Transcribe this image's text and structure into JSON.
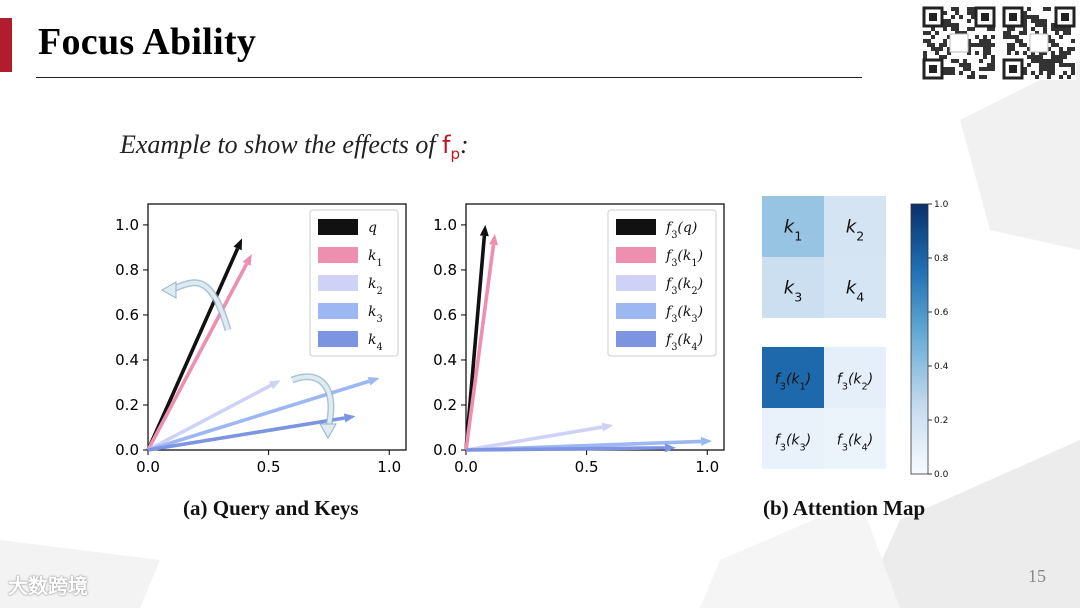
{
  "slide": {
    "title": "Focus Ability",
    "subtitle_text": "Example to show the effects of",
    "subtitle_fp": "f",
    "subtitle_fp_sub": "p",
    "subtitle_colon": ":",
    "page_number": "15",
    "logo_text": "大数跨境",
    "colors": {
      "accent": "#b01e2e",
      "fp": "#c0141e"
    }
  },
  "captions": {
    "left": "(a) Query and Keys",
    "right": "(b) Attention Map"
  },
  "chart_data": [
    {
      "type": "line",
      "subtype": "vector-plot",
      "xlim": [
        0,
        1.0
      ],
      "ylim": [
        0,
        1.0
      ],
      "xticks": [
        "0.0",
        "0.5",
        "1.0"
      ],
      "yticks": [
        "0.0",
        "0.2",
        "0.4",
        "0.6",
        "0.8",
        "1.0"
      ],
      "legend_position": "top-right",
      "series": [
        {
          "name": "q",
          "x": [
            0,
            0.39
          ],
          "y": [
            0,
            0.94
          ],
          "color": "#111111"
        },
        {
          "name": "k1",
          "x": [
            0,
            0.43
          ],
          "y": [
            0,
            0.87
          ],
          "color": "#ee8fb0"
        },
        {
          "name": "k2",
          "x": [
            0,
            0.55
          ],
          "y": [
            0,
            0.31
          ],
          "color": "#cfd2f6"
        },
        {
          "name": "k3",
          "x": [
            0,
            0.96
          ],
          "y": [
            0,
            0.32
          ],
          "color": "#9db7f3"
        },
        {
          "name": "k4",
          "x": [
            0,
            0.86
          ],
          "y": [
            0,
            0.15
          ],
          "color": "#7d94e3"
        }
      ],
      "legend_labels": [
        "q",
        "k1",
        "k2",
        "k3",
        "k4"
      ]
    },
    {
      "type": "line",
      "subtype": "vector-plot",
      "xlim": [
        0,
        1.0
      ],
      "ylim": [
        0,
        1.0
      ],
      "xticks": [
        "0.0",
        "0.5",
        "1.0"
      ],
      "yticks": [
        "0.0",
        "0.2",
        "0.4",
        "0.6",
        "0.8",
        "1.0"
      ],
      "legend_position": "top-right",
      "series": [
        {
          "name": "f3(q)",
          "x": [
            0,
            0.08
          ],
          "y": [
            0,
            1.0
          ],
          "color": "#111111"
        },
        {
          "name": "f3(k1)",
          "x": [
            0,
            0.12
          ],
          "y": [
            0,
            0.96
          ],
          "color": "#ee8fb0"
        },
        {
          "name": "f3(k2)",
          "x": [
            0,
            0.61
          ],
          "y": [
            0,
            0.11
          ],
          "color": "#cfd2f6"
        },
        {
          "name": "f3(k3)",
          "x": [
            0,
            1.02
          ],
          "y": [
            0,
            0.04
          ],
          "color": "#9db7f3"
        },
        {
          "name": "f3(k4)",
          "x": [
            0,
            0.87
          ],
          "y": [
            0,
            0.01
          ],
          "color": "#7d94e3"
        }
      ],
      "legend_labels": [
        "f3(q)",
        "f3(k1)",
        "f3(k2)",
        "f3(k3)",
        "f3(k4)"
      ]
    },
    {
      "type": "heatmap",
      "colorbar_ticks": [
        "0.0",
        "0.2",
        "0.4",
        "0.6",
        "0.8",
        "1.0"
      ],
      "colorbar_range": [
        0,
        1.0
      ],
      "matrices": [
        {
          "labels": [
            [
              "k1",
              "k2"
            ],
            [
              "k3",
              "k4"
            ]
          ],
          "values": [
            [
              0.38,
              0.18
            ],
            [
              0.22,
              0.17
            ]
          ]
        },
        {
          "labels": [
            [
              "f3(k1)",
              "f3(k2)"
            ],
            [
              "f3(k3)",
              "f3(k4)"
            ]
          ],
          "values": [
            [
              0.78,
              0.09
            ],
            [
              0.07,
              0.06
            ]
          ]
        }
      ]
    }
  ]
}
